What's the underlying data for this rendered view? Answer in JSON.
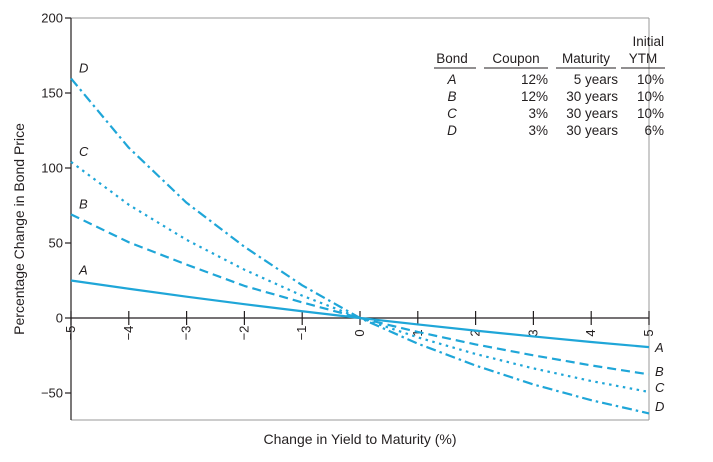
{
  "chart_data": {
    "type": "line",
    "xlabel": "Change in Yield to Maturity (%)",
    "ylabel": "Percentage Change in Bond Price",
    "xlim": [
      -5,
      5
    ],
    "ylim": [
      -60,
      200
    ],
    "x_ticks": [
      -5,
      -4,
      -3,
      -2,
      -1,
      0,
      1,
      2,
      3,
      4,
      5
    ],
    "x_tick_labels": [
      "−5",
      "−4",
      "−3",
      "−2",
      "−1",
      "0",
      "1",
      "2",
      "3",
      "4",
      "5"
    ],
    "y_ticks": [
      200,
      150,
      100,
      50,
      0,
      -50
    ],
    "y_tick_labels": [
      "200",
      "150",
      "100",
      "50",
      "0",
      "−50"
    ],
    "grid": false,
    "colors": {
      "series": "#1fa6d8",
      "axis": "#231f20"
    },
    "x": [
      -5,
      -4,
      -3,
      -2,
      -1,
      0,
      1,
      2,
      3,
      4,
      5
    ],
    "series": [
      {
        "name": "A",
        "style": "solid",
        "values": [
          25.0,
          19.5,
          14.2,
          9.2,
          4.5,
          0,
          -4.3,
          -8.4,
          -12.3,
          -16.0,
          -19.4
        ]
      },
      {
        "name": "B",
        "style": "dashed",
        "values": [
          69.1,
          50.5,
          35.6,
          21.4,
          10.4,
          0,
          -9.3,
          -17.6,
          -24.9,
          -31.6,
          -37.6
        ]
      },
      {
        "name": "C",
        "style": "dotted",
        "values": [
          104.1,
          75.5,
          52.1,
          32.2,
          14.9,
          0,
          -12.9,
          -24.0,
          -33.6,
          -42.0,
          -49.3
        ]
      },
      {
        "name": "D",
        "style": "dashdot",
        "values": [
          159.7,
          113.5,
          76.8,
          47.5,
          21.8,
          0,
          -17.1,
          -31.7,
          -44.3,
          -54.8,
          -63.6
        ]
      }
    ],
    "series_labels_left": [
      "A",
      "B",
      "C",
      "D"
    ],
    "series_labels_right": [
      "A",
      "B",
      "C",
      "D"
    ],
    "legend_table": {
      "header_line1": [
        "",
        "",
        "",
        "Initial"
      ],
      "header_line2": [
        "Bond",
        "Coupon",
        "Maturity",
        "YTM"
      ],
      "rows": [
        [
          "A",
          "12%",
          "5 years",
          "10%"
        ],
        [
          "B",
          "12%",
          "30 years",
          "10%"
        ],
        [
          "C",
          "3%",
          "30 years",
          "10%"
        ],
        [
          "D",
          "3%",
          "30 years",
          "6%"
        ]
      ]
    }
  }
}
